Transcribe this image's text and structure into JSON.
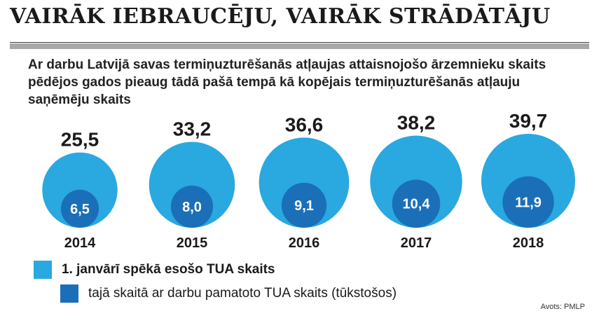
{
  "header": {
    "title": "VAIRĀK IEBRAUCĒJU, VAIRĀK STRĀDĀTĀJU",
    "subtitle": "Ar darbu Latvijā savas termiņuzturēšanās atļaujas attaisnojošo ārzemnieku skaits pēdējos gados pieaug tādā pašā tempā kā kopējais termiņuzturēšanās atļauju saņēmēju skaits"
  },
  "chart_data": {
    "type": "bubble",
    "title": "VAIRĀK IEBRAUCĒJU, VAIRĀK STRĀDĀTĀJU",
    "categories": [
      "2014",
      "2015",
      "2016",
      "2017",
      "2018"
    ],
    "series": [
      {
        "name": "1. janvārī spēkā esošo TUA skaits",
        "values": [
          25.5,
          33.2,
          36.6,
          38.2,
          39.7
        ],
        "labels": [
          "25,5",
          "33,2",
          "36,6",
          "38,2",
          "39,7"
        ],
        "color": "#2aa8e0"
      },
      {
        "name": "tajā skaitā ar darbu pamatoto TUA skaits (tūkstošos)",
        "values": [
          6.5,
          8.0,
          9.1,
          10.4,
          11.9
        ],
        "labels": [
          "6,5",
          "8,0",
          "9,1",
          "10,4",
          "11,9"
        ],
        "color": "#1a6fb8"
      }
    ]
  },
  "legend": {
    "item1": "1. janvārī spēkā esošo TUA skaits",
    "item2": "tajā skaitā ar darbu pamatoto TUA skaits (tūkstošos)",
    "color1": "#2aa8e0",
    "color2": "#1a6fb8"
  },
  "source": "Avots: PMLP"
}
